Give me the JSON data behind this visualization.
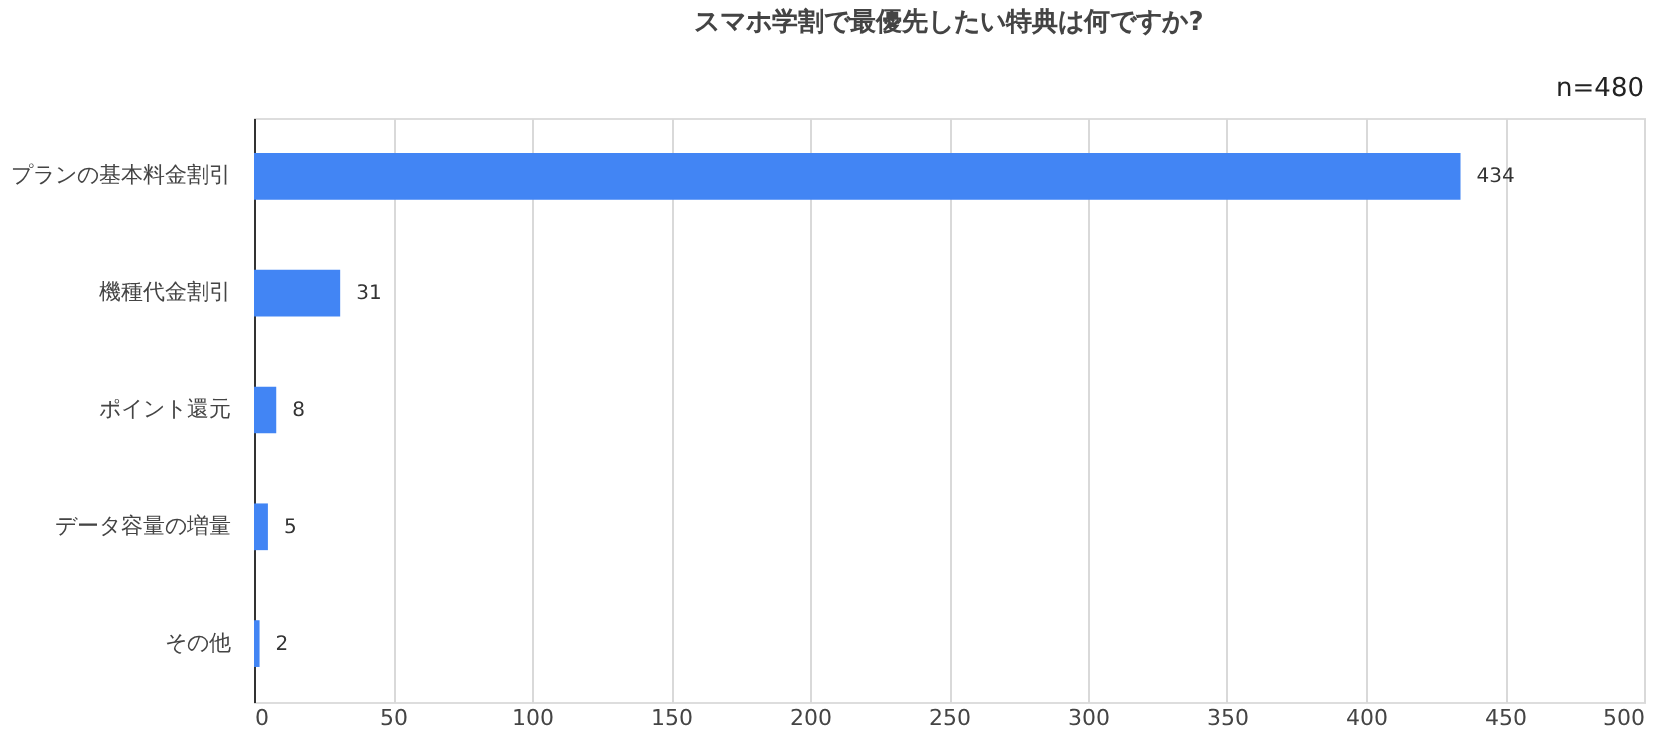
{
  "chart_data": {
    "type": "bar",
    "orientation": "horizontal",
    "title": "スマホ学割で最優先したい特典は何ですか?",
    "categories": [
      "プランの基本料金割引",
      "機種代金割引",
      "ポイント還元",
      "データ容量の増量",
      "その他"
    ],
    "values": [
      434,
      31,
      8,
      5,
      2
    ],
    "color": "#4285f4",
    "xlim": [
      0,
      500
    ],
    "xticks": [
      0,
      50,
      100,
      150,
      200,
      250,
      300,
      350,
      400,
      450,
      500
    ],
    "grid": "x",
    "data_labels": true,
    "annotations": [
      "n=480"
    ]
  }
}
